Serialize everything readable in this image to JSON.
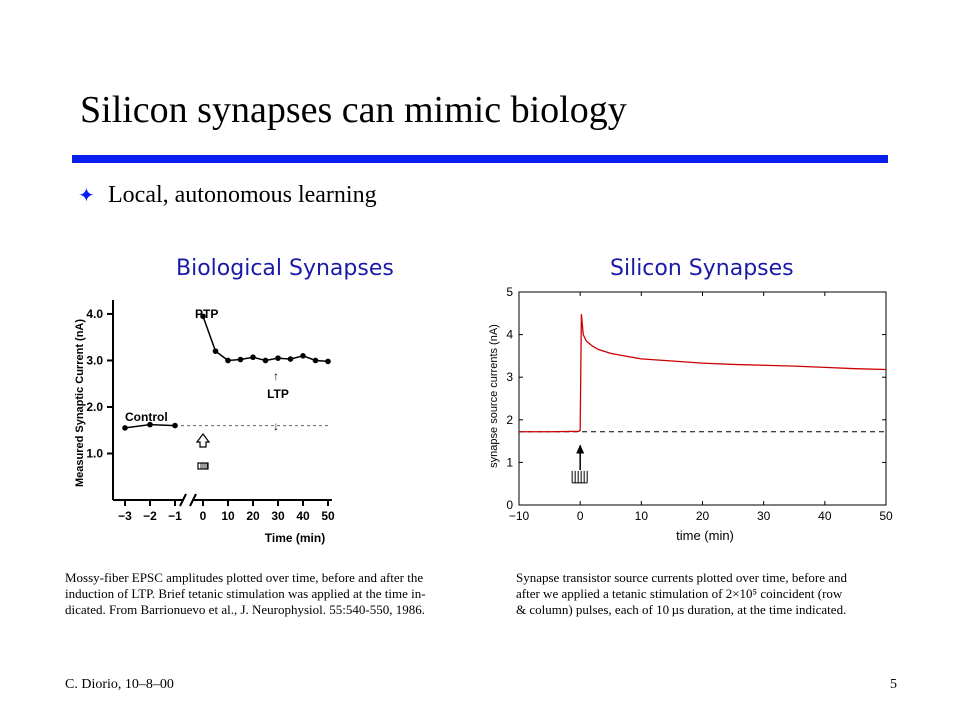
{
  "slide": {
    "title": "Silicon synapses can mimic biology",
    "bullet_icon": "four-pointed-star-icon",
    "bullet": "Local, autonomous learning",
    "footer_left": "C. Diorio, 10–8–00",
    "footer_right": "5",
    "colors": {
      "rule": "#0a1ef0",
      "chart_title": "#1a1aa8",
      "silicon_trace": "#cc0000"
    }
  },
  "chart_data": [
    {
      "type": "line",
      "title": "Biological Synapses",
      "xlabel": "Time (min)",
      "ylabel": "Measured Synaptic Current (nA)",
      "x_ticks": [
        "−3",
        "−2",
        "−1",
        "0",
        "10",
        "20",
        "30",
        "40",
        "50"
      ],
      "y_ticks": [
        "1.0",
        "2.0",
        "3.0",
        "4.0"
      ],
      "ylim": [
        0.0,
        4.3
      ],
      "axis_break": "between −1 and 0",
      "series": [
        {
          "name": "Control",
          "x": [
            -3,
            -2,
            -1
          ],
          "values": [
            1.55,
            1.62,
            1.6
          ]
        },
        {
          "x": [
            0,
            5,
            10,
            15,
            20,
            25,
            30,
            35,
            40,
            45,
            50
          ],
          "values": [
            3.95,
            3.2,
            3.0,
            3.02,
            3.07,
            3.0,
            3.05,
            3.03,
            3.1,
            3.0,
            2.98
          ]
        }
      ],
      "baseline": 1.6,
      "annotations": {
        "ptp": "PTP",
        "control": "Control",
        "ltp": "LTP"
      },
      "caption": [
        "Mossy-fiber EPSC amplitudes plotted over time, before and after the",
        "induction of LTP. Brief tetanic stimulation was applied at the time in-",
        "dicated. From Barrionuevo et al., J. Neurophysiol. 55:540-550, 1986."
      ]
    },
    {
      "type": "line",
      "title": "Silicon Synapses",
      "xlabel": "time (min)",
      "ylabel": "synapse source currents (nA)",
      "x_ticks": [
        "−10",
        "0",
        "10",
        "20",
        "30",
        "40",
        "50"
      ],
      "y_ticks": [
        "0",
        "1",
        "2",
        "3",
        "4",
        "5"
      ],
      "xlim": [
        -10,
        50
      ],
      "ylim": [
        0,
        5
      ],
      "series": [
        {
          "x": [
            -10,
            -5,
            -0.2,
            0,
            0.2,
            0.5,
            1,
            2,
            3,
            5,
            8,
            10,
            15,
            20,
            25,
            30,
            35,
            40,
            45,
            50
          ],
          "values": [
            1.72,
            1.72,
            1.73,
            1.75,
            4.48,
            4.0,
            3.85,
            3.73,
            3.65,
            3.56,
            3.48,
            3.43,
            3.38,
            3.33,
            3.3,
            3.28,
            3.26,
            3.23,
            3.2,
            3.18
          ]
        }
      ],
      "baseline": 1.72,
      "caption": [
        "Synapse transistor source currents plotted over time, before and",
        "after we applied a tetanic stimulation of 2×10⁵ coincident (row",
        "& column) pulses, each of 10 µs duration, at the time indicated."
      ]
    }
  ]
}
